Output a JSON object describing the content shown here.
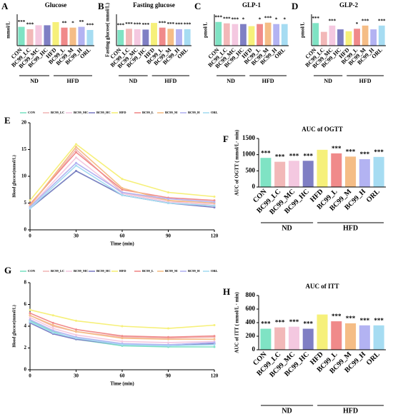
{
  "chart_data": [
    {
      "type": "bar",
      "label": "A",
      "title": "Glucose",
      "ylabel": "mmol/L",
      "categories": [
        "CON",
        "BC99_LC",
        "BC99_MC",
        "BC99_HC",
        "HFD",
        "BC99_L",
        "BC99_M",
        "BC99_H",
        "ORL"
      ],
      "values": [
        12,
        10.5,
        13,
        13,
        15,
        11.5,
        11.5,
        12,
        10
      ],
      "annotations": [
        "***",
        "***",
        null,
        null,
        null,
        "**",
        "*",
        "**",
        "***"
      ],
      "colors": [
        "#7fe3c4",
        "#f2b8b8",
        "#f4c8e0",
        "#7f7fc4",
        "#f6f07a",
        "#f08a8a",
        "#f5bd86",
        "#b3b3f2",
        "#a6dcf2"
      ],
      "ylim": [
        0,
        20
      ],
      "groups": [
        {
          "name": "ND",
          "members": [
            "CON",
            "BC99_LC",
            "BC99_MC",
            "BC99_HC"
          ]
        },
        {
          "name": "HFD",
          "members": [
            "HFD",
            "BC99_L",
            "BC99_M",
            "BC99_H",
            "ORL"
          ]
        }
      ]
    },
    {
      "type": "bar",
      "label": "B",
      "title": "Fasting glucose",
      "ylabel": "Fasting glucose( mmol/L)",
      "categories": [
        "CON",
        "BC99_LC",
        "BC99_MC",
        "BC99_HC",
        "HFD",
        "BC99_L",
        "BC99_M",
        "BC99_H",
        "ORL"
      ],
      "values": [
        4,
        4.3,
        4.2,
        4.1,
        5.8,
        4.6,
        4.3,
        4.2,
        4.2
      ],
      "annotations": [
        "***",
        "***",
        "***",
        "***",
        null,
        "***",
        "***",
        "***",
        "***"
      ],
      "colors": [
        "#7fe3c4",
        "#f2b8b8",
        "#f4c8e0",
        "#7f7fc4",
        "#f6f07a",
        "#f08a8a",
        "#f5bd86",
        "#b3b3f2",
        "#a6dcf2"
      ],
      "ylim": [
        0,
        8
      ],
      "groups": [
        {
          "name": "ND",
          "members": [
            "CON",
            "BC99_LC",
            "BC99_MC",
            "BC99_HC"
          ]
        },
        {
          "name": "HFD",
          "members": [
            "HFD",
            "BC99_L",
            "BC99_M",
            "BC99_H",
            "ORL"
          ]
        }
      ]
    },
    {
      "type": "bar",
      "label": "C",
      "title": "GLP-1",
      "ylabel": "pmol/L",
      "categories": [
        "CON",
        "BC99_LC",
        "BC99_MC",
        "BC99_HC",
        "HFD",
        "BC99_L",
        "BC99_M",
        "BC99_H",
        "ORL"
      ],
      "values": [
        34,
        32,
        31,
        31,
        28,
        31,
        33,
        31,
        31
      ],
      "annotations": [
        "***",
        "***",
        "***",
        "*",
        null,
        "*",
        "***",
        "*",
        "*"
      ],
      "colors": [
        "#7fe3c4",
        "#f2b8b8",
        "#f4c8e0",
        "#7f7fc4",
        "#f6f07a",
        "#f08a8a",
        "#f5bd86",
        "#b3b3f2",
        "#a6dcf2"
      ],
      "ylim": [
        0,
        45
      ],
      "groups": [
        {
          "name": "ND",
          "members": [
            "CON",
            "BC99_LC",
            "BC99_MC",
            "BC99_HC"
          ]
        },
        {
          "name": "HFD",
          "members": [
            "HFD",
            "BC99_L",
            "BC99_M",
            "BC99_H",
            "ORL"
          ]
        }
      ]
    },
    {
      "type": "bar",
      "label": "D",
      "title": "GLP-2",
      "ylabel": "pmol/L",
      "categories": [
        "CON",
        "BC99_LC",
        "BC99_MC",
        "BC99_HC",
        "HFD",
        "BC99_L",
        "BC99_M",
        "BC99_H",
        "ORL"
      ],
      "values": [
        18,
        11,
        16,
        13,
        11.5,
        13.5,
        16,
        13,
        16
      ],
      "annotations": [
        "***",
        null,
        "***",
        null,
        null,
        "*",
        "***",
        null,
        "***"
      ],
      "colors": [
        "#7fe3c4",
        "#f2b8b8",
        "#f4c8e0",
        "#7f7fc4",
        "#f6f07a",
        "#f08a8a",
        "#f5bd86",
        "#b3b3f2",
        "#a6dcf2"
      ],
      "ylim": [
        0,
        25
      ],
      "groups": [
        {
          "name": "ND",
          "members": [
            "CON",
            "BC99_LC",
            "BC99_MC",
            "BC99_HC"
          ]
        },
        {
          "name": "HFD",
          "members": [
            "HFD",
            "BC99_L",
            "BC99_M",
            "BC99_H",
            "ORL"
          ]
        }
      ]
    },
    {
      "type": "line",
      "label": "E",
      "ylabel": "Blood glucose(mmol/L)",
      "xlabel": "Time (min)",
      "x": [
        0,
        30,
        60,
        90,
        120
      ],
      "xlim": [
        0,
        120
      ],
      "xticks": [
        0,
        30,
        60,
        90,
        120
      ],
      "ylim": [
        0,
        20
      ],
      "yticks": [
        0,
        5,
        10,
        15,
        20
      ],
      "series": [
        {
          "name": "CON",
          "color": "#7fe3c4",
          "values": [
            4,
            11,
            6.5,
            5,
            4.5
          ]
        },
        {
          "name": "BC99_LC",
          "color": "#f2b8b8",
          "values": [
            4.5,
            15,
            7,
            5.5,
            4.5
          ]
        },
        {
          "name": "BC99_MC",
          "color": "#f4c8e0",
          "values": [
            4.3,
            13.5,
            6.8,
            5.2,
            4.8
          ]
        },
        {
          "name": "BC99_HC",
          "color": "#7f7fc4",
          "values": [
            4,
            11,
            6.5,
            5,
            4.2
          ]
        },
        {
          "name": "HFD",
          "color": "#f6f07a",
          "values": [
            5.5,
            16,
            9.5,
            7,
            6.2
          ]
        },
        {
          "name": "BC99_L",
          "color": "#f08a8a",
          "values": [
            4.8,
            14.5,
            7.5,
            6,
            5.5
          ]
        },
        {
          "name": "BC99_M",
          "color": "#f5bd86",
          "values": [
            4.5,
            15.5,
            7.8,
            5.5,
            5
          ]
        },
        {
          "name": "BC99_H",
          "color": "#b3b3f2",
          "values": [
            4.3,
            12.5,
            7,
            5.8,
            5.2
          ]
        },
        {
          "name": "ORL",
          "color": "#a6dcf2",
          "values": [
            4,
            12,
            6.5,
            5,
            4.5
          ]
        }
      ]
    },
    {
      "type": "bar",
      "label": "F",
      "title": "AUC of OGTT",
      "ylabel": "AUC of OGTT ( mmol/L· min)",
      "categories": [
        "CON",
        "BC99_LC",
        "BC99_MC",
        "BC99_HC",
        "HFD",
        "BC99_L",
        "BC99_M",
        "BC99_H",
        "ORL"
      ],
      "values": [
        900,
        780,
        810,
        810,
        1150,
        1040,
        940,
        860,
        930
      ],
      "annotations": [
        "***",
        "***",
        "***",
        "***",
        null,
        "***",
        "***",
        "***",
        "***"
      ],
      "colors": [
        "#7fe3c4",
        "#f2b8b8",
        "#f4c8e0",
        "#7f7fc4",
        "#f6f07a",
        "#f08a8a",
        "#f5bd86",
        "#b3b3f2",
        "#a6dcf2"
      ],
      "ylim": [
        0,
        1500
      ],
      "yticks": [
        0,
        500,
        1000,
        1500
      ],
      "groups": [
        {
          "name": "ND",
          "members": [
            "CON",
            "BC99_LC",
            "BC99_MC",
            "BC99_HC"
          ]
        },
        {
          "name": "HFD",
          "members": [
            "HFD",
            "BC99_L",
            "BC99_M",
            "BC99_H",
            "ORL"
          ]
        }
      ]
    },
    {
      "type": "line",
      "label": "G",
      "ylabel": "Blood glucose(mmol/L)",
      "xlabel": "Time (min)",
      "x": [
        0,
        15,
        30,
        60,
        90,
        120
      ],
      "xlim": [
        0,
        120
      ],
      "xticks": [
        0,
        30,
        60,
        90,
        120
      ],
      "ylim": [
        0,
        8
      ],
      "yticks": [
        0,
        2,
        4,
        6,
        8
      ],
      "series": [
        {
          "name": "CON",
          "color": "#7fe3c4",
          "values": [
            4.5,
            3.5,
            2.8,
            2.2,
            2.1,
            2.1
          ]
        },
        {
          "name": "BC99_LC",
          "color": "#f2b8b8",
          "values": [
            5,
            4,
            3.5,
            3,
            2.9,
            3
          ]
        },
        {
          "name": "BC99_MC",
          "color": "#f4c8e0",
          "values": [
            4.8,
            3.8,
            3.2,
            2.6,
            2.5,
            2.6
          ]
        },
        {
          "name": "BC99_HC",
          "color": "#7f7fc4",
          "values": [
            4.3,
            3.3,
            2.8,
            2.3,
            2.2,
            2.4
          ]
        },
        {
          "name": "HFD",
          "color": "#f6f07a",
          "values": [
            5.5,
            5,
            4.5,
            4,
            3.8,
            4.1
          ]
        },
        {
          "name": "BC99_L",
          "color": "#f08a8a",
          "values": [
            5.2,
            4.3,
            3.7,
            3.1,
            3,
            3.1
          ]
        },
        {
          "name": "BC99_M",
          "color": "#f5bd86",
          "values": [
            5,
            4.1,
            3.5,
            2.9,
            2.8,
            2.8
          ]
        },
        {
          "name": "BC99_H",
          "color": "#b3b3f2",
          "values": [
            4.6,
            3.6,
            3,
            2.4,
            2.3,
            2.5
          ]
        },
        {
          "name": "ORL",
          "color": "#a6dcf2",
          "values": [
            4.4,
            3.4,
            2.9,
            2.3,
            2.2,
            2.3
          ]
        }
      ]
    },
    {
      "type": "bar",
      "label": "H",
      "title": "AUC of ITT",
      "ylabel": "AUC of ITT ( mmol/L · min)",
      "categories": [
        "CON",
        "BC99_LC",
        "BC99_MC",
        "BC99_HC",
        "HFD",
        "BC99_L",
        "BC99_M",
        "BC99_H",
        "ORL"
      ],
      "values": [
        310,
        330,
        340,
        310,
        520,
        420,
        390,
        360,
        360
      ],
      "annotations": [
        "***",
        "***",
        "***",
        "***",
        null,
        "***",
        "***",
        "***",
        "***"
      ],
      "colors": [
        "#7fe3c4",
        "#f2b8b8",
        "#f4c8e0",
        "#7f7fc4",
        "#f6f07a",
        "#f08a8a",
        "#f5bd86",
        "#b3b3f2",
        "#a6dcf2"
      ],
      "ylim": [
        0,
        800
      ],
      "yticks": [
        0,
        200,
        400,
        600,
        800
      ],
      "groups": [
        {
          "name": "ND",
          "members": [
            "CON",
            "BC99_LC",
            "BC99_MC",
            "BC99_HC"
          ]
        },
        {
          "name": "HFD",
          "members": [
            "HFD",
            "BC99_L",
            "BC99_M",
            "BC99_H",
            "ORL"
          ]
        }
      ]
    }
  ]
}
